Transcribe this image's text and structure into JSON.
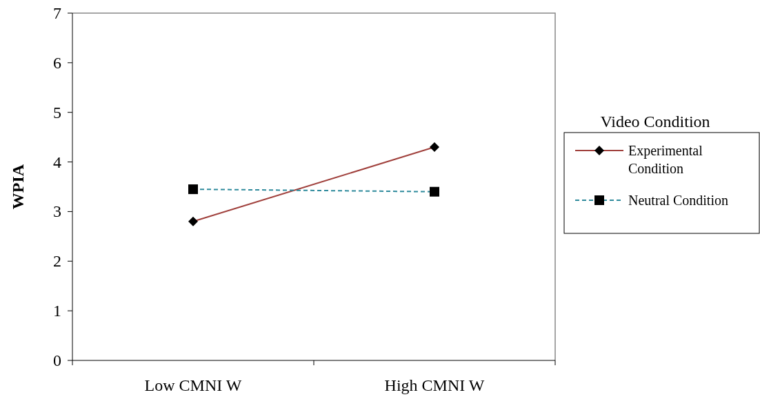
{
  "chart_data": {
    "type": "line",
    "ylabel": "WPIA",
    "legend_title": "Video Condition",
    "legend": "right",
    "grid": false,
    "categories": [
      "Low CMNI W",
      "High CMNI W"
    ],
    "ylim": [
      0,
      7
    ],
    "yticks": [
      0,
      1,
      2,
      3,
      4,
      5,
      6,
      7
    ],
    "series": [
      {
        "name": "Experimental Condition",
        "color": "#a0403c",
        "values": [
          2.8,
          4.3
        ],
        "marker": "diamond",
        "line_style": "solid"
      },
      {
        "name": "Neutral Condition",
        "color": "#2e8a9c",
        "values": [
          3.45,
          3.4
        ],
        "marker": "square",
        "line_style": "dashed"
      }
    ]
  }
}
